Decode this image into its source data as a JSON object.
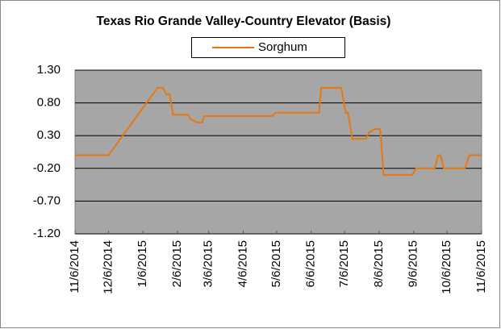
{
  "chart_data": {
    "type": "line",
    "title": "Texas Rio Grande Valley-Country Elevator (Basis)",
    "x": [
      "11/6/2014",
      "12/6/2014",
      "1/19/2015",
      "1/24/2015",
      "1/27/2015",
      "1/30/2015",
      "2/2/2015",
      "2/15/2015",
      "2/18/2015",
      "2/24/2015",
      "2/28/2015",
      "3/2/2015",
      "5/2/2015",
      "5/5/2015",
      "6/13/2015",
      "6/15/2015",
      "7/3/2015",
      "7/7/2015",
      "7/9/2015",
      "7/13/2015",
      "7/25/2015",
      "7/28/2015",
      "8/2/2015",
      "8/7/2015",
      "8/10/2015",
      "9/5/2015",
      "9/8/2015",
      "9/25/2015",
      "9/28/2015",
      "9/30/2015",
      "10/3/2015",
      "10/22/2015",
      "10/26/2015",
      "11/6/2015"
    ],
    "series": [
      {
        "name": "Sorghum",
        "color": "#e8770e",
        "values": [
          0,
          0,
          1.03,
          1.03,
          0.93,
          0.93,
          0.62,
          0.62,
          0.55,
          0.5,
          0.5,
          0.6,
          0.6,
          0.65,
          0.65,
          1.03,
          1.03,
          0.65,
          0.65,
          0.25,
          0.25,
          0.35,
          0.4,
          0.4,
          -0.3,
          -0.3,
          -0.2,
          -0.2,
          0,
          0,
          -0.2,
          -0.2,
          0,
          0
        ]
      }
    ],
    "xlim": [
      "11/6/2014",
      "11/6/2015"
    ],
    "xticks": [
      "11/6/2014",
      "12/6/2014",
      "1/6/2015",
      "2/6/2015",
      "3/6/2015",
      "4/6/2015",
      "5/6/2015",
      "6/6/2015",
      "7/6/2015",
      "8/6/2015",
      "9/6/2015",
      "10/6/2015",
      "11/6/2015"
    ],
    "ylim": [
      -1.2,
      1.3
    ],
    "yticks": [
      {
        "value": -1.2,
        "label": "-1.20"
      },
      {
        "value": -0.7,
        "label": "-0.70"
      },
      {
        "value": -0.2,
        "label": "-0.20"
      },
      {
        "value": 0.3,
        "label": "0.30"
      },
      {
        "value": 0.8,
        "label": "0.80"
      },
      {
        "value": 1.3,
        "label": "1.30"
      }
    ],
    "grid": true,
    "legend": "top"
  }
}
